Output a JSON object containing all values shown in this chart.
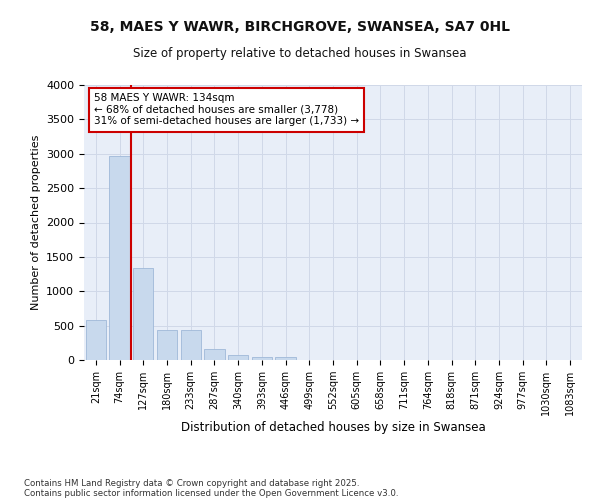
{
  "title_line1": "58, MAES Y WAWR, BIRCHGROVE, SWANSEA, SA7 0HL",
  "title_line2": "Size of property relative to detached houses in Swansea",
  "xlabel": "Distribution of detached houses by size in Swansea",
  "ylabel": "Number of detached properties",
  "footer_line1": "Contains HM Land Registry data © Crown copyright and database right 2025.",
  "footer_line2": "Contains public sector information licensed under the Open Government Licence v3.0.",
  "bar_labels": [
    "21sqm",
    "74sqm",
    "127sqm",
    "180sqm",
    "233sqm",
    "287sqm",
    "340sqm",
    "393sqm",
    "446sqm",
    "499sqm",
    "552sqm",
    "605sqm",
    "658sqm",
    "711sqm",
    "764sqm",
    "818sqm",
    "871sqm",
    "924sqm",
    "977sqm",
    "1030sqm",
    "1083sqm"
  ],
  "bar_values": [
    580,
    2970,
    1340,
    430,
    430,
    155,
    75,
    50,
    40,
    0,
    0,
    0,
    0,
    0,
    0,
    0,
    0,
    0,
    0,
    0,
    0
  ],
  "bar_color": "#c8d9ed",
  "bar_edge_color": "#a0b8d8",
  "grid_color": "#d0d8e8",
  "background_color": "#e8eef8",
  "annotation_line1": "58 MAES Y WAWR: 134sqm",
  "annotation_line2": "← 68% of detached houses are smaller (3,778)",
  "annotation_line3": "31% of semi-detached houses are larger (1,733) →",
  "vline_color": "#cc0000",
  "annotation_box_edge_color": "#cc0000",
  "ylim": [
    0,
    4000
  ],
  "yticks": [
    0,
    500,
    1000,
    1500,
    2000,
    2500,
    3000,
    3500,
    4000
  ]
}
